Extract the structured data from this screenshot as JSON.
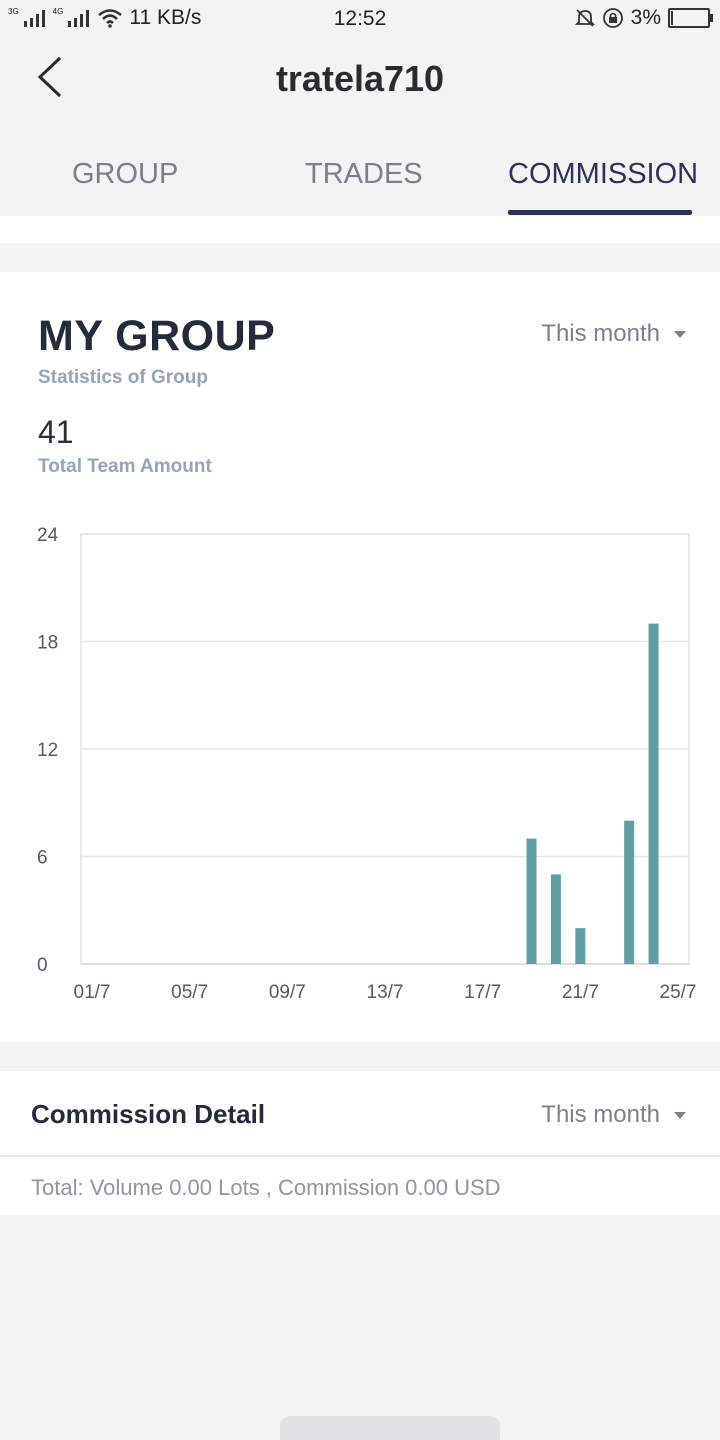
{
  "status_bar": {
    "network_1": "3G",
    "network_2": "4G",
    "speed": "11 KB/s",
    "time": "12:52",
    "battery": "3%",
    "icons": [
      "signal-icon",
      "signal-icon",
      "wifi-icon",
      "mute-icon",
      "rotation-lock-icon",
      "battery-icon"
    ]
  },
  "header": {
    "title": "tratela710",
    "back_icon": "chevron-left-icon"
  },
  "tabs": [
    {
      "label": "GROUP",
      "active": false
    },
    {
      "label": "TRADES",
      "active": false
    },
    {
      "label": "COMMISSION",
      "active": true
    }
  ],
  "group_card": {
    "title": "MY GROUP",
    "subtitle": "Statistics of Group",
    "period": "This month",
    "total_value": "41",
    "total_label": "Total Team Amount"
  },
  "chart_data": {
    "type": "bar",
    "x": [
      1,
      2,
      3,
      4,
      5,
      6,
      7,
      8,
      9,
      10,
      11,
      12,
      13,
      14,
      15,
      16,
      17,
      18,
      19,
      20,
      21,
      22,
      23,
      24,
      25
    ],
    "x_tick_labels": [
      "01/7",
      "05/7",
      "09/7",
      "13/7",
      "17/7",
      "21/7",
      "25/7"
    ],
    "values": [
      0,
      0,
      0,
      0,
      0,
      0,
      0,
      0,
      0,
      0,
      0,
      0,
      0,
      0,
      0,
      0,
      0,
      0,
      7,
      5,
      2,
      0,
      8,
      19,
      0
    ],
    "y_ticks": [
      0,
      6,
      12,
      18,
      24
    ],
    "ylim": [
      0,
      24
    ],
    "grid": true,
    "bar_color": "#5f9ea2"
  },
  "detail_card": {
    "title": "Commission Detail",
    "period": "This month",
    "total": "Total: Volume 0.00 Lots , Commission 0.00 USD"
  },
  "colors": {
    "accent": "#2e3352",
    "background": "#f3f3f4",
    "muted_label": "#98a3b6",
    "bar": "#5f9ea2"
  }
}
